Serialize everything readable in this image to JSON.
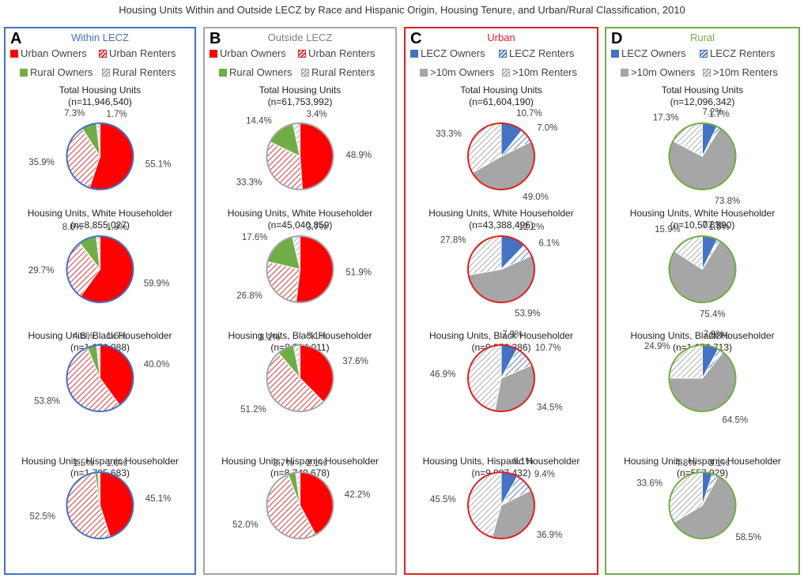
{
  "title": "Housing Units Within and Outside LECZ by Race and Hispanic Origin, Housing Tenure, and Urban/Rural Classification, 2010",
  "colors": {
    "urban_owner": "#ff0000",
    "urban_renter": "#e02020",
    "rural_owner": "#70ad47",
    "rural_renter": "#a0a0a0",
    "lecz_owner": "#4472c4",
    "lecz_renter": "#4472c4",
    "gt10_owner": "#a6a6a6",
    "gt10_renter": "#a6a6a6",
    "border_A": "#4472c4",
    "border_B": "#a6a6a6",
    "border_C": "#e02020",
    "border_D": "#70ad47"
  },
  "chart_data": [
    {
      "id": "A",
      "type": "pie",
      "letter": "A",
      "title": "Within LECZ",
      "title_color": "#4472c4",
      "legend": [
        "Urban Owners",
        "Urban Renters",
        "Rural Owners",
        "Rural Renters"
      ],
      "slice_styles": [
        "urban_owner",
        "urban_renter",
        "rural_owner",
        "rural_renter"
      ],
      "pies": [
        {
          "title": "Total Housing Units",
          "n": "(n=11,946,540)",
          "values": [
            55.1,
            35.9,
            7.3,
            1.7
          ],
          "labels": [
            "55.1%",
            "35.9%",
            "7.3%",
            "1.7%"
          ]
        },
        {
          "title": "Housing Units, White Householder",
          "n": "(n=8,855,027)",
          "values": [
            59.9,
            29.7,
            8.6,
            1.8
          ],
          "labels": [
            "59.9%",
            "29.7%",
            "8.6%",
            "1.8%"
          ]
        },
        {
          "title": "Housing Units, Black Householder",
          "n": "(n=1,856,088)",
          "values": [
            40.0,
            53.8,
            4.6,
            1.6
          ],
          "labels": [
            "40.0%",
            "53.8%",
            "4.6%",
            "1.6%"
          ]
        },
        {
          "title": "Housing Units, Hispanic Householder",
          "n": "(n=1,795,683)",
          "values": [
            45.1,
            52.5,
            1.5,
            1.0
          ],
          "labels": [
            "45.1%",
            "52.5%",
            "1.5%",
            "1.0%"
          ]
        }
      ]
    },
    {
      "id": "B",
      "type": "pie",
      "letter": "B",
      "title": "Outside LECZ",
      "title_color": "#7f7f7f",
      "legend": [
        "Urban Owners",
        "Urban Renters",
        "Rural Owners",
        "Rural Renters"
      ],
      "slice_styles": [
        "urban_owner",
        "urban_renter",
        "rural_owner",
        "rural_renter"
      ],
      "pies": [
        {
          "title": "Total Housing Units",
          "n": "(n=61,753,992)",
          "values": [
            48.9,
            33.3,
            14.4,
            3.4
          ],
          "labels": [
            "48.9%",
            "33.3%",
            "14.4%",
            "3.4%"
          ]
        },
        {
          "title": "Housing Units, White Householder",
          "n": "(n=45,040,859)",
          "values": [
            51.9,
            26.8,
            17.6,
            3.7
          ],
          "labels": [
            "51.9%",
            "26.8%",
            "17.6%",
            "3.7%"
          ]
        },
        {
          "title": "Housing Units, Black Householder",
          "n": "(n=8,594,011)",
          "values": [
            37.6,
            51.2,
            8.1,
            3.1
          ],
          "labels": [
            "37.6%",
            "51.2%",
            "8.1%",
            "3.1%"
          ]
        },
        {
          "title": "Housing Units, Hispanic Householder",
          "n": "(n=8,749,678)",
          "values": [
            42.2,
            52.0,
            3.7,
            2.1
          ],
          "labels": [
            "42.2%",
            "52.0%",
            "3.7%",
            "2.1%"
          ]
        }
      ]
    },
    {
      "id": "C",
      "type": "pie",
      "letter": "C",
      "title": "Urban",
      "title_color": "#e02020",
      "legend": [
        "LECZ Owners",
        "LECZ Renters",
        ">10m Owners",
        ">10m Renters"
      ],
      "slice_styles": [
        "lecz_owner",
        "lecz_renter",
        "gt10_owner",
        "gt10_renter"
      ],
      "pies": [
        {
          "title": "Total Housing Units",
          "n": "(n=61,604,190)",
          "values": [
            10.7,
            7.0,
            49.0,
            33.3
          ],
          "labels": [
            "10.7%",
            "7.0%",
            "49.0%",
            "33.3%"
          ]
        },
        {
          "title": "Housing Units, White Householder",
          "n": "(n=43,388,496)",
          "values": [
            12.2,
            6.1,
            53.9,
            27.8
          ],
          "labels": [
            "12.2%",
            "6.1%",
            "53.9%",
            "27.8%"
          ]
        },
        {
          "title": "Housing Units, Black Householder",
          "n": "(n=9,373,386)",
          "values": [
            7.9,
            10.7,
            34.5,
            46.9
          ],
          "labels": [
            "7.9%",
            "10.7%",
            "34.5%",
            "46.9%"
          ]
        },
        {
          "title": "Housing Units, Hispanic Householder",
          "n": "(n=9,987,432)",
          "values": [
            8.1,
            9.4,
            36.9,
            45.5
          ],
          "labels": [
            "8.1%",
            "9.4%",
            "36.9%",
            "45.5%"
          ]
        }
      ]
    },
    {
      "id": "D",
      "type": "pie",
      "letter": "D",
      "title": "Rural",
      "title_color": "#70ad47",
      "legend": [
        "LECZ Owners",
        "LECZ Renters",
        ">10m Owners",
        ">10m Renters"
      ],
      "slice_styles": [
        "lecz_owner",
        "lecz_renter",
        "gt10_owner",
        "gt10_renter"
      ],
      "pies": [
        {
          "title": "Total Housing Units",
          "n": "(n=12,096,342)",
          "values": [
            7.2,
            1.7,
            73.8,
            17.3
          ],
          "labels": [
            "7.2%",
            "1.7%",
            "73.8%",
            "17.3%"
          ]
        },
        {
          "title": "Housing Units, White Householder",
          "n": "(n=10,507,390)",
          "values": [
            7.3,
            1.5,
            75.4,
            15.9
          ],
          "labels": [
            "7.3%",
            "1.5%",
            "75.4%",
            "15.9%"
          ]
        },
        {
          "title": "Housing Units, Black Householder",
          "n": "(n=1,076,713)",
          "values": [
            7.9,
            2.8,
            64.5,
            24.9
          ],
          "labels": [
            "7.9%",
            "2.8%",
            "64.5%",
            "24.9%"
          ]
        },
        {
          "title": "Housing Units, Hispanic Householder",
          "n": "(n=557,929)",
          "values": [
            4.8,
            3.1,
            58.5,
            33.6
          ],
          "labels": [
            "4.8%",
            "3.1%",
            "58.5%",
            "33.6%"
          ]
        }
      ]
    }
  ]
}
